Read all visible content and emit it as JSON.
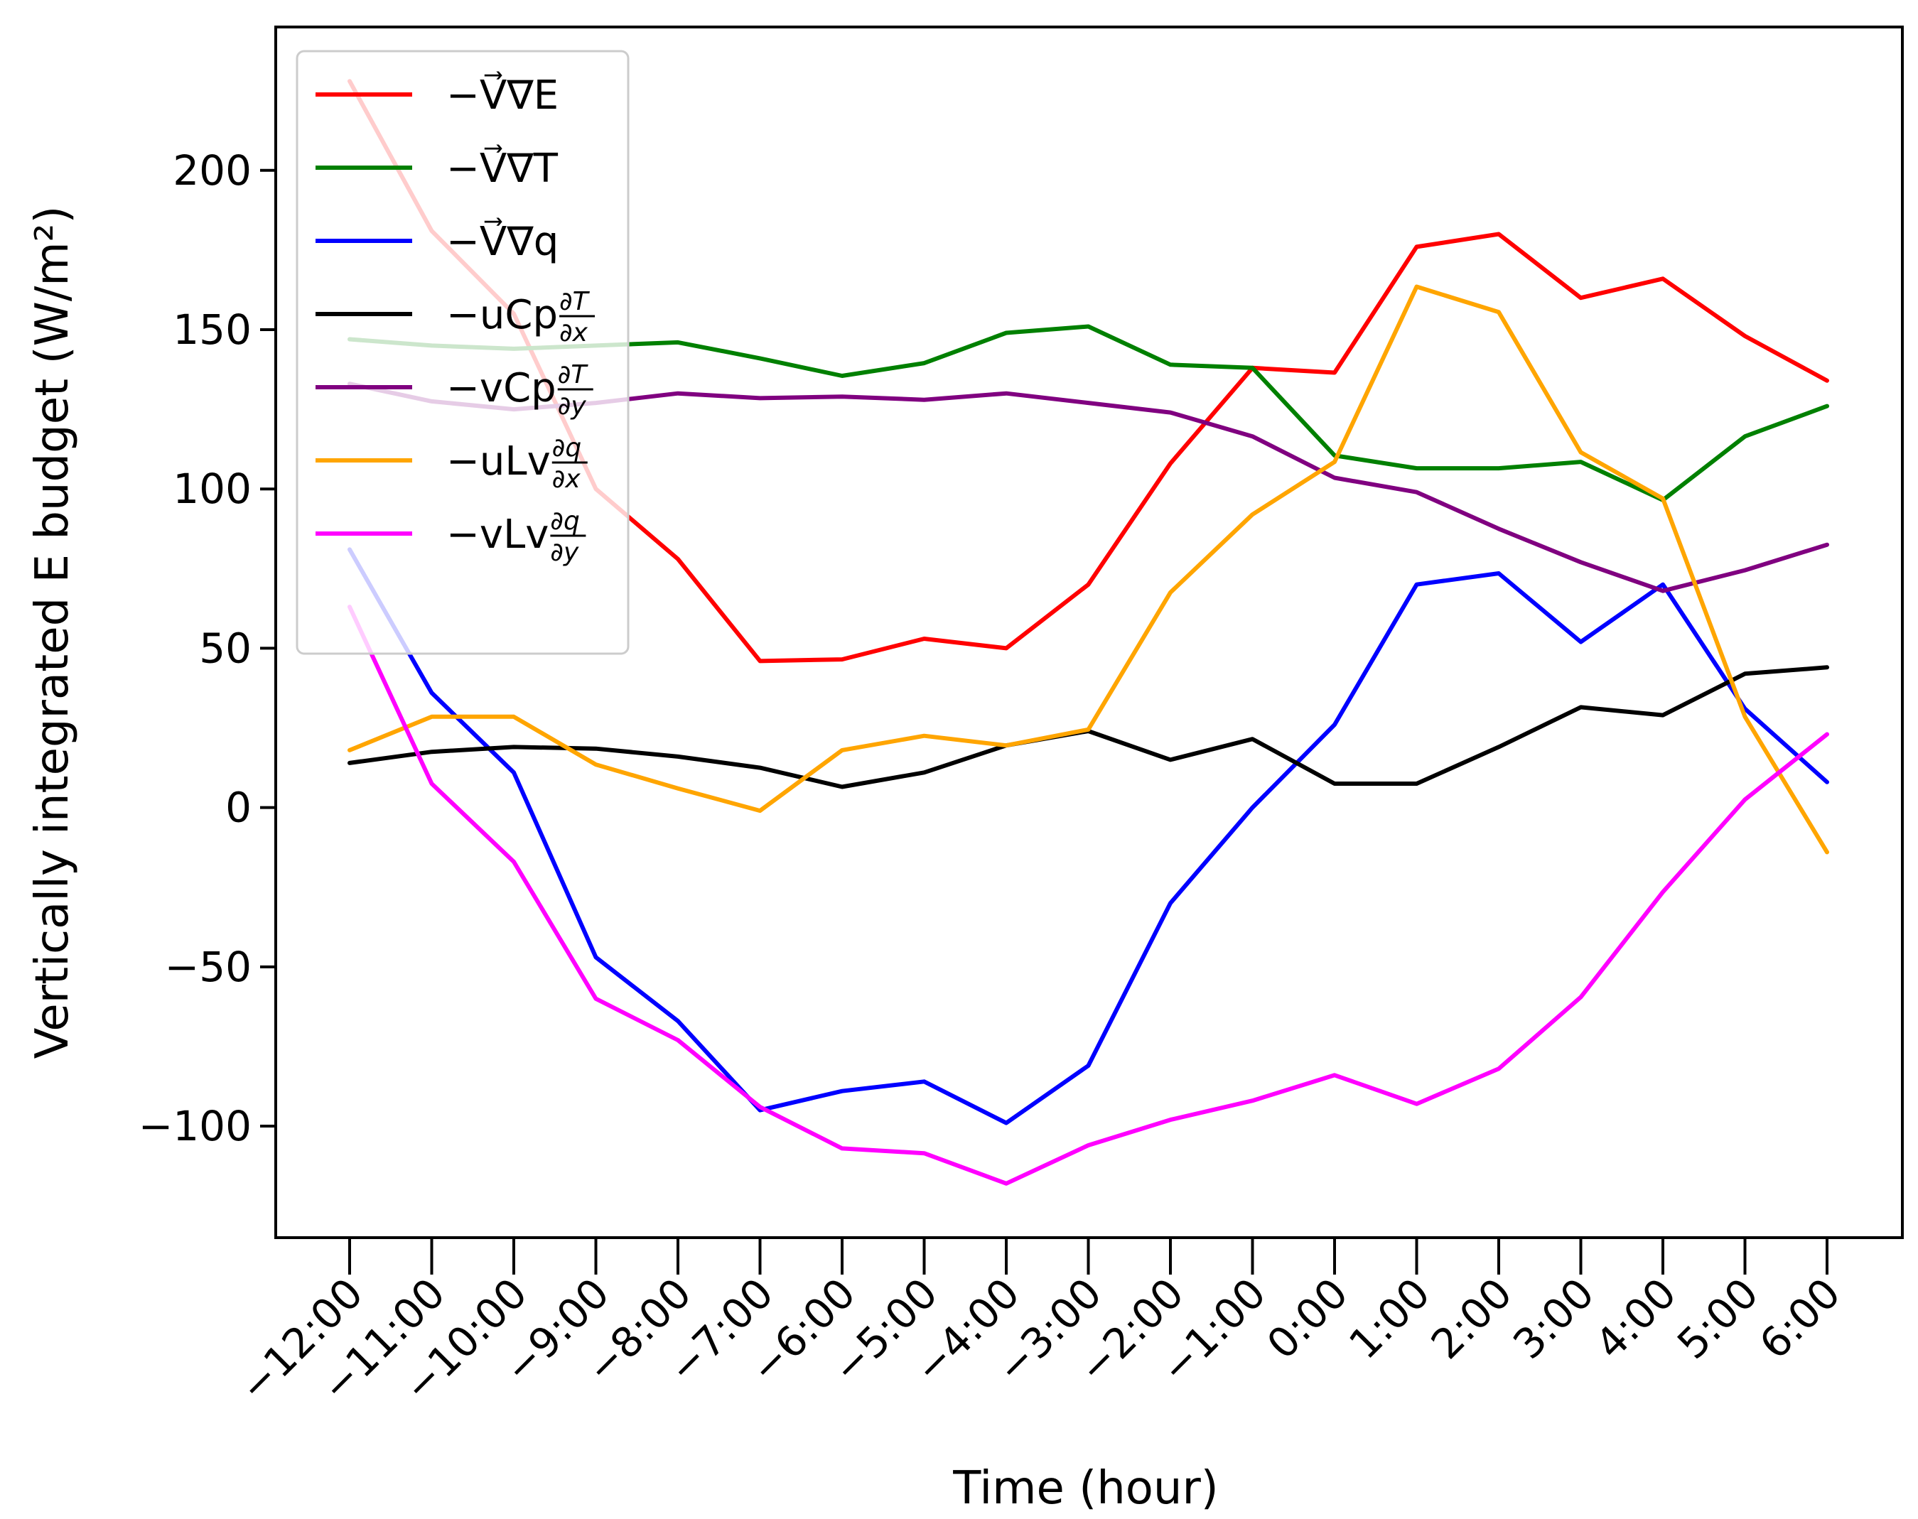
{
  "chart_data": {
    "type": "line",
    "title": "",
    "xlabel": "Time (hour)",
    "ylabel": "Vertically integrated E budget (W/m²)",
    "ylim": [
      -135,
      245
    ],
    "yticks": [
      -100,
      -50,
      0,
      50,
      100,
      150,
      200
    ],
    "ytick_labels": [
      "−100",
      "−50",
      "0",
      "50",
      "100",
      "150",
      "200"
    ],
    "categories": [
      "−12:00",
      "−11:00",
      "−10:00",
      "−9:00",
      "−8:00",
      "−7:00",
      "−6:00",
      "−5:00",
      "−4:00",
      "−3:00",
      "−2:00",
      "−1:00",
      "0:00",
      "1:00",
      "2:00",
      "3:00",
      "4:00",
      "5:00",
      "6:00"
    ],
    "legend_position": "top-left",
    "series": [
      {
        "name": "−V⃗∇E",
        "label_main": "−V⃗∇E",
        "color": "#ff0000",
        "values": [
          228,
          181,
          155,
          100,
          78,
          46,
          46.5,
          53,
          50,
          70,
          108,
          138,
          136.5,
          176,
          180,
          160,
          166,
          148,
          134
        ]
      },
      {
        "name": "−V⃗∇T",
        "label_main": "−V⃗∇T",
        "color": "#008000",
        "values": [
          147,
          145,
          144,
          145,
          146,
          141,
          135.5,
          139.5,
          149,
          151,
          139,
          138,
          110.5,
          106.5,
          106.5,
          108.5,
          96.5,
          116.5,
          126
        ]
      },
      {
        "name": "−V⃗∇q",
        "label_main": "−V⃗∇q",
        "color": "#0000ff",
        "values": [
          81,
          36,
          11,
          -47,
          -67,
          -95,
          -89,
          -86,
          -99,
          -81,
          -30,
          0,
          26,
          70,
          73.5,
          52,
          70,
          31,
          8
        ]
      },
      {
        "name": "−uCp∂T/∂x",
        "label_main": "−uCp",
        "frac_num": "∂T",
        "frac_den": "∂x",
        "color": "#000000",
        "values": [
          14,
          17.5,
          19,
          18.5,
          16,
          12.5,
          6.5,
          11,
          19.5,
          24,
          15,
          21.5,
          7.5,
          7.5,
          19,
          31.5,
          29,
          42,
          44
        ]
      },
      {
        "name": "−vCp∂T/∂y",
        "label_main": "−vCp",
        "frac_num": "∂T",
        "frac_den": "∂y",
        "color": "#800080",
        "values": [
          133,
          127.5,
          125,
          127,
          130,
          128.5,
          129,
          128,
          130,
          127,
          124,
          116.5,
          103.5,
          99,
          87.5,
          77,
          68,
          74.5,
          82.5
        ]
      },
      {
        "name": "−uLv∂q/∂x",
        "label_main": "−uLv",
        "frac_num": "∂q",
        "frac_den": "∂x",
        "color": "#ffa500",
        "values": [
          18,
          28.5,
          28.5,
          13.5,
          6,
          -1,
          18,
          22.5,
          19.5,
          24.5,
          67.5,
          92,
          108.5,
          163.5,
          155.5,
          111.5,
          97,
          28.5,
          -14
        ]
      },
      {
        "name": "−vLv∂q/∂y",
        "label_main": "−vLv",
        "frac_num": "∂q",
        "frac_den": "∂y",
        "color": "#ff00ff",
        "values": [
          63,
          7.5,
          -17,
          -60,
          -73,
          -94,
          -107,
          -108.5,
          -118,
          -106,
          -98,
          -92,
          -84,
          -93,
          -82,
          -59.5,
          -26.5,
          2.5,
          23
        ]
      }
    ]
  }
}
